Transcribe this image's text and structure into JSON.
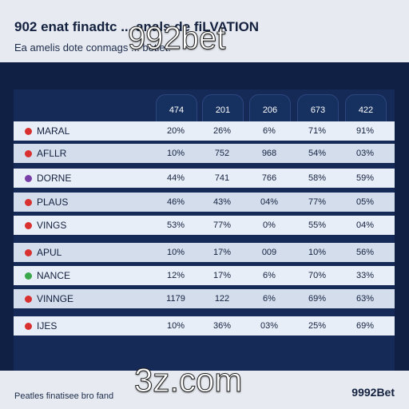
{
  "header": {
    "title": "902 enat finadtc ... anals de fiLVATION",
    "subtitle": "Ea amelis dote conmags ... betlet."
  },
  "watermark_top": "992bet",
  "watermark_bottom": "3z.com",
  "footer": {
    "note": "Peatles finatisee bro fand",
    "brand": "9992Bet"
  },
  "table": {
    "columns": [
      "474",
      "201",
      "206",
      "673",
      "422"
    ],
    "rows": [
      {
        "label": "MARAL",
        "marker_color": "#d93030",
        "values": [
          "20%",
          "26%",
          "6%",
          "71%",
          "91%"
        ]
      },
      {
        "label": "AFLLR",
        "marker_color": "#d93030",
        "values": [
          "10%",
          "752",
          "968",
          "54%",
          "03%"
        ]
      },
      {
        "label": "DORNE",
        "marker_color": "#7a3ea8",
        "values": [
          "44%",
          "741",
          "766",
          "58%",
          "59%"
        ]
      },
      {
        "label": "PLAUS",
        "marker_color": "#d93030",
        "values": [
          "46%",
          "43%",
          "04%",
          "77%",
          "05%"
        ]
      },
      {
        "label": "VINGS",
        "marker_color": "#d93030",
        "values": [
          "53%",
          "77%",
          "0%",
          "55%",
          "04%"
        ]
      },
      {
        "label": "APUL",
        "marker_color": "#d93030",
        "values": [
          "10%",
          "17%",
          "009",
          "10%",
          "56%"
        ]
      },
      {
        "label": "NANCE",
        "marker_color": "#3aa84a",
        "values": [
          "12%",
          "17%",
          "6%",
          "70%",
          "33%"
        ]
      },
      {
        "label": "VINNGE",
        "marker_color": "#d93030",
        "values": [
          "1179",
          "122",
          "6%",
          "69%",
          "63%"
        ]
      },
      {
        "label": "IJES",
        "marker_color": "#d93030",
        "values": [
          "10%",
          "36%",
          "03%",
          "25%",
          "69%"
        ]
      }
    ]
  }
}
